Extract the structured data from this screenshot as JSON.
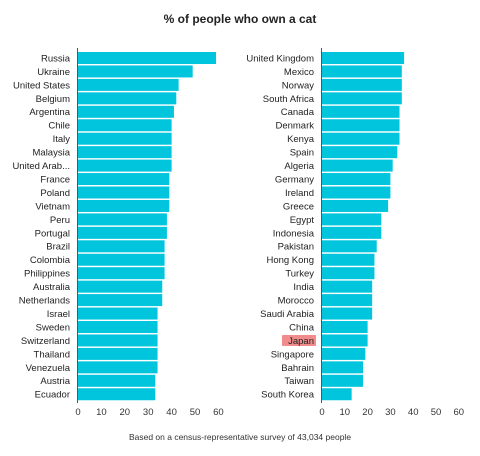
{
  "chart_data": {
    "type": "bar",
    "orientation": "horizontal",
    "title": "% of people who own a cat",
    "caption": "Based on a census-representative survey of 43,034 people",
    "bar_color": "#00C5DD",
    "highlight_color": "#F28B8B",
    "xlim": [
      0,
      65
    ],
    "xticks": [
      0,
      10,
      20,
      30,
      40,
      50,
      60
    ],
    "panels": [
      {
        "categories": [
          "Russia",
          "Ukraine",
          "United States",
          "Belgium",
          "Argentina",
          "Chile",
          "Italy",
          "Malaysia",
          "United Arab...",
          "France",
          "Poland",
          "Vietnam",
          "Peru",
          "Portugal",
          "Brazil",
          "Colombia",
          "Philippines",
          "Australia",
          "Netherlands",
          "Israel",
          "Sweden",
          "Switzerland",
          "Thailand",
          "Venezuela",
          "Austria",
          "Ecuador"
        ],
        "values": [
          59,
          49,
          43,
          42,
          41,
          40,
          40,
          40,
          40,
          39,
          39,
          39,
          38,
          38,
          37,
          37,
          37,
          36,
          36,
          34,
          34,
          34,
          34,
          34,
          33,
          33
        ]
      },
      {
        "categories": [
          "United Kingdom",
          "Mexico",
          "Norway",
          "South Africa",
          "Canada",
          "Denmark",
          "Kenya",
          "Spain",
          "Algeria",
          "Germany",
          "Ireland",
          "Greece",
          "Egypt",
          "Indonesia",
          "Pakistan",
          "Hong Kong",
          "Turkey",
          "India",
          "Morocco",
          "Saudi Arabia",
          "China",
          "Japan",
          "Singapore",
          "Bahrain",
          "Taiwan",
          "South Korea"
        ],
        "values": [
          36,
          35,
          35,
          35,
          34,
          34,
          34,
          33,
          31,
          30,
          30,
          29,
          26,
          26,
          24,
          23,
          23,
          22,
          22,
          22,
          20,
          20,
          19,
          18,
          18,
          13
        ],
        "highlight": "Japan"
      }
    ]
  }
}
